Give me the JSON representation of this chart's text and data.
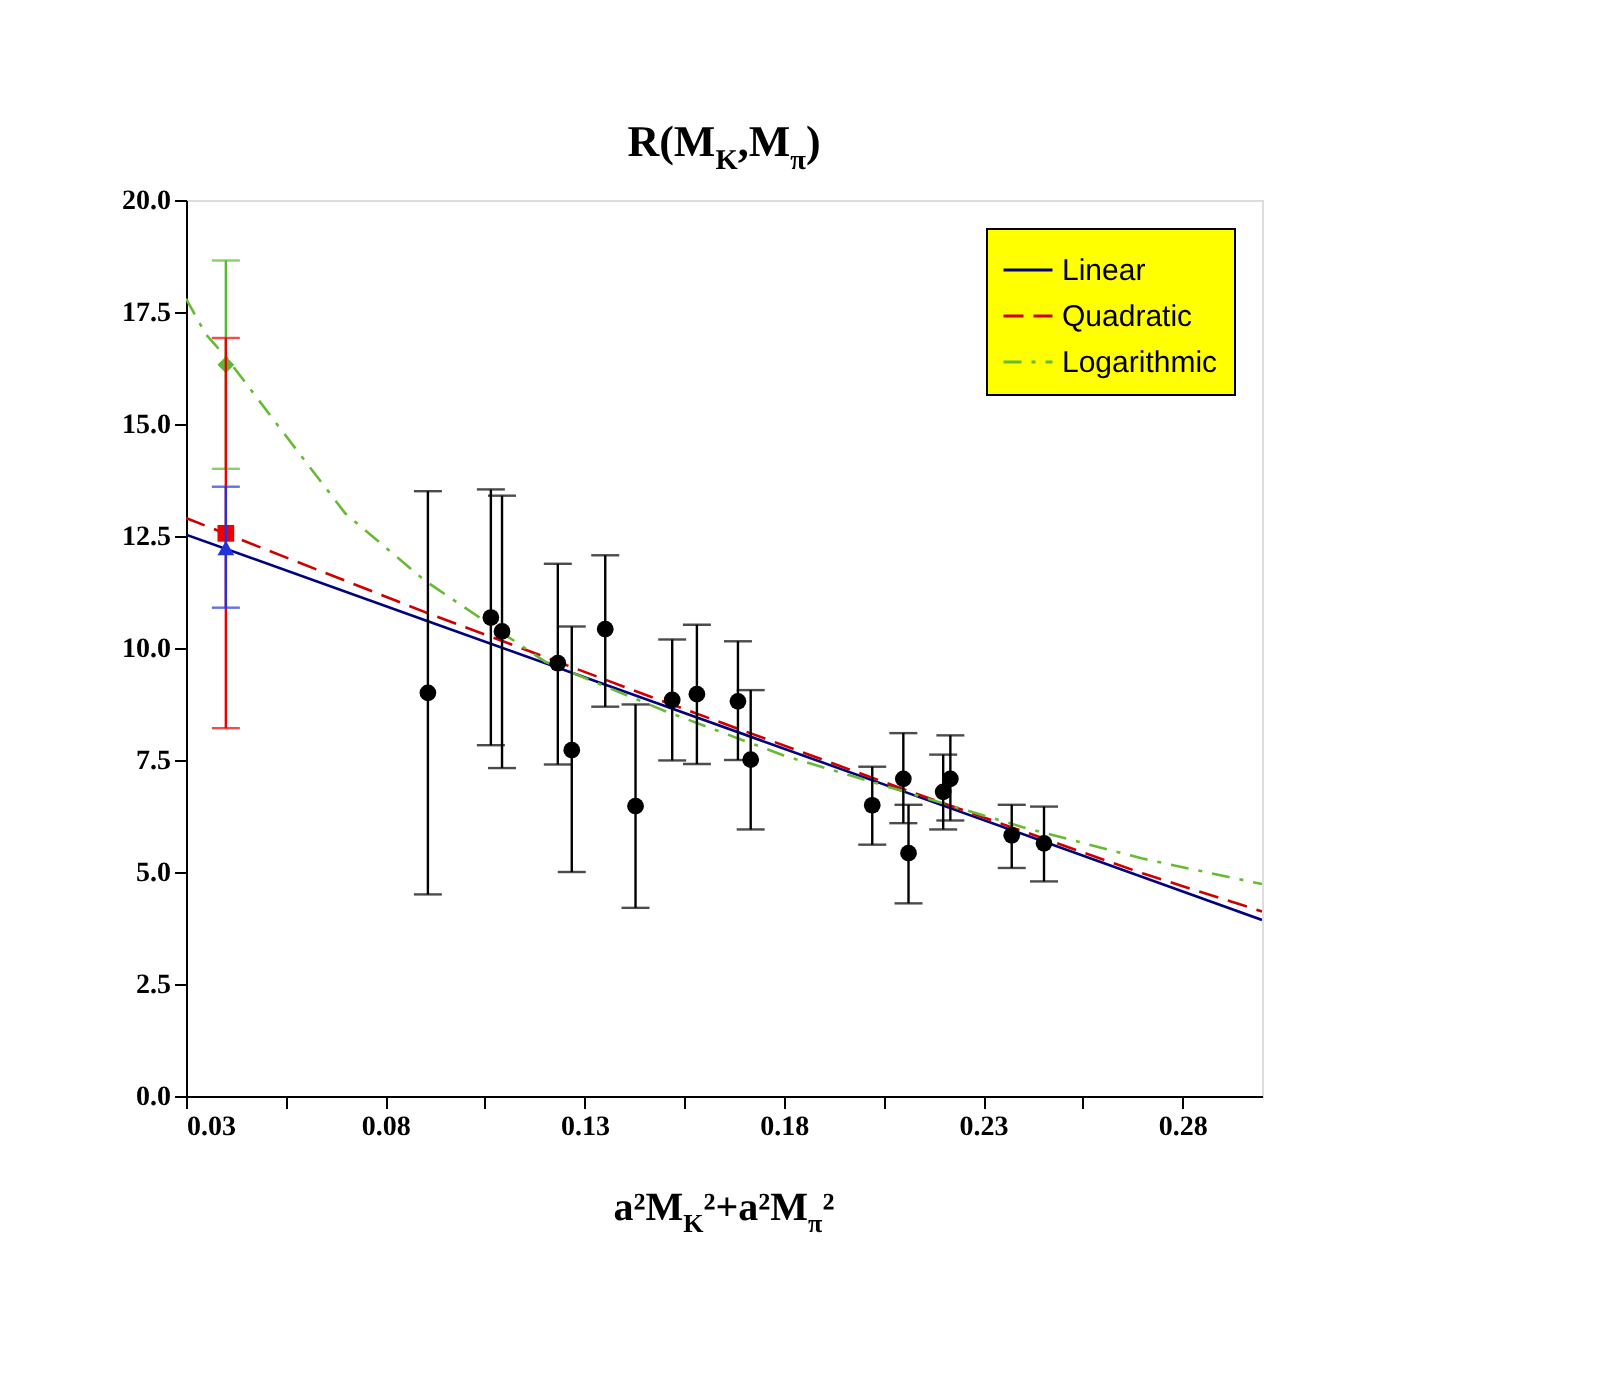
{
  "chart_data": {
    "type": "scatter",
    "title": "R(M$_{K}$,M$_{π}$)",
    "xlabel": "a²M$_{K}$²+a²M$_{π}$²",
    "xlim": [
      0.03,
      0.3
    ],
    "ylim": [
      0,
      20
    ],
    "xticks": [
      0.03,
      {
        "value": 0.055,
        "label": null
      },
      0.08,
      {
        "value": 0.105,
        "label": null
      },
      0.13,
      {
        "value": 0.155,
        "label": null
      },
      0.18,
      {
        "value": 0.205,
        "label": null
      },
      0.23,
      {
        "value": 0.255,
        "label": null
      },
      0.28
    ],
    "yticks": [
      {
        "value": 0,
        "label": "0.0"
      },
      {
        "value": 2.5,
        "label": "2.5"
      },
      {
        "value": 5,
        "label": "5.0"
      },
      {
        "value": 7.5,
        "label": "7.5"
      },
      {
        "value": 10,
        "label": "10.0"
      },
      {
        "value": 12.5,
        "label": "12.5"
      },
      {
        "value": 15,
        "label": "15.0"
      },
      {
        "value": 17.5,
        "label": "17.5"
      },
      {
        "value": 20,
        "label": "20.0"
      }
    ],
    "grid": false,
    "legend": "top right",
    "series": [
      {
        "marker": "circle",
        "color": "#000000",
        "x": [
          0.0907,
          0.1065,
          0.1093,
          0.1233,
          0.1268,
          0.1352,
          0.1428,
          0.152,
          0.1582,
          0.1685,
          0.1717,
          0.2022,
          0.21,
          0.2113,
          0.22,
          0.2218,
          0.2372,
          0.2453
        ],
        "values": [
          9.0,
          10.68,
          10.37,
          9.66,
          7.72,
          10.42,
          6.47,
          8.84,
          8.97,
          8.81,
          7.51,
          6.49,
          7.08,
          5.42,
          6.79,
          7.08,
          5.82,
          5.64
        ],
        "errors": [
          [
            4.5,
            13.5
          ],
          [
            7.83,
            13.54
          ],
          [
            7.32,
            13.4
          ],
          [
            7.4,
            11.88
          ],
          [
            5.0,
            10.48
          ],
          [
            8.69,
            12.07
          ],
          [
            4.2,
            8.74
          ],
          [
            7.49,
            10.19
          ],
          [
            7.41,
            10.52
          ],
          [
            7.5,
            10.15
          ],
          [
            5.95,
            9.06
          ],
          [
            5.61,
            7.35
          ],
          [
            6.09,
            8.1
          ],
          [
            4.3,
            6.5
          ],
          [
            5.95,
            7.62
          ],
          [
            6.15,
            8.05
          ],
          [
            5.09,
            6.5
          ],
          [
            4.79,
            6.46
          ]
        ]
      },
      {
        "type": "line",
        "name": "Linear",
        "color": "#000080",
        "line_style": "solid",
        "x": [
          0.03,
          0.09,
          0.15,
          0.21,
          0.27,
          0.3
        ],
        "values": [
          12.53,
          10.62,
          8.71,
          6.8,
          4.89,
          3.93
        ]
      },
      {
        "type": "line",
        "name": "Quadratic",
        "color": "#cc0000",
        "line_style": "dashed",
        "x": [
          0.03,
          0.09,
          0.15,
          0.21,
          0.27,
          0.3
        ],
        "values": [
          12.9,
          10.8,
          8.8,
          6.85,
          4.97,
          4.12
        ]
      },
      {
        "type": "line",
        "name": "Logarithmic",
        "color": "#66bb33",
        "line_style": "dashdot",
        "x": [
          0.03,
          0.035,
          0.04,
          0.0545,
          0.07,
          0.09,
          0.12,
          0.15,
          0.18,
          0.21,
          0.24,
          0.27,
          0.3
        ],
        "values": [
          17.8,
          17.0,
          16.5,
          14.8,
          13.0,
          11.5,
          9.7,
          8.6,
          7.6,
          6.8,
          6.0,
          5.3,
          4.73
        ]
      },
      {
        "marker": "diamond",
        "color": "#55bb33",
        "x": [
          0.04
        ],
        "values": [
          16.32
        ],
        "errors": [
          [
            14.0,
            18.65
          ]
        ]
      },
      {
        "marker": "square",
        "color": "#ee0000",
        "x": [
          0.04
        ],
        "values": [
          12.56
        ],
        "errors": [
          [
            8.21,
            16.92
          ]
        ]
      },
      {
        "marker": "triangle",
        "color": "#2233dd",
        "x": [
          0.04
        ],
        "values": [
          12.23
        ],
        "errors": [
          [
            10.9,
            13.6
          ]
        ]
      }
    ]
  }
}
